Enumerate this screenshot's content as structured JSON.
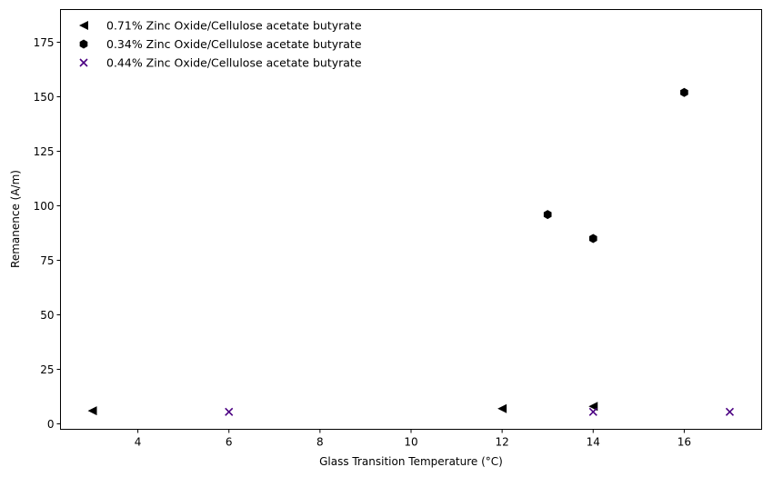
{
  "chart_data": {
    "type": "scatter",
    "title": "",
    "xlabel": "Glass Transition Temperature (°C)",
    "ylabel": "Remanence (A/m)",
    "xlim": [
      2.3,
      17.7
    ],
    "ylim": [
      -2.5,
      190
    ],
    "xticks": [
      4,
      6,
      8,
      10,
      12,
      14,
      16
    ],
    "yticks": [
      0,
      25,
      50,
      75,
      100,
      125,
      150,
      175
    ],
    "grid": false,
    "legend_position": "top-left",
    "series": [
      {
        "name": "0.71% Zinc Oxide/Cellulose acetate butyrate",
        "marker": "triangle-left",
        "color": "#000000",
        "x": [
          3,
          12,
          14
        ],
        "y": [
          6,
          7,
          8
        ]
      },
      {
        "name": "0.34% Zinc Oxide/Cellulose acetate butyrate",
        "marker": "hexagon",
        "color": "#000000",
        "x": [
          13,
          14,
          16
        ],
        "y": [
          96,
          85,
          152
        ]
      },
      {
        "name": "0.44% Zinc Oxide/Cellulose acetate butyrate",
        "marker": "x",
        "color": "#4b0082",
        "x": [
          6,
          14,
          17
        ],
        "y": [
          5.5,
          5.5,
          5.5
        ]
      }
    ]
  }
}
